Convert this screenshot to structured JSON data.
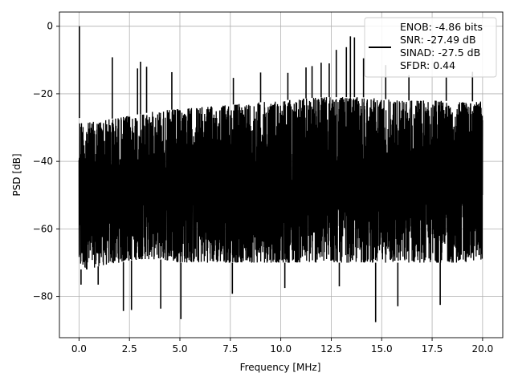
{
  "chart_data": {
    "type": "line",
    "title": "",
    "xlabel": "Frequency [MHz]",
    "ylabel": "PSD [dB]",
    "xlim": [
      -0.97,
      21.0
    ],
    "ylim": [
      -92.2,
      4.2
    ],
    "x_ticks": [
      0.0,
      2.5,
      5.0,
      7.5,
      10.0,
      12.5,
      15.0,
      17.5,
      20.0
    ],
    "x_tick_labels": [
      "0.0",
      "2.5",
      "5.0",
      "7.5",
      "10.0",
      "12.5",
      "15.0",
      "17.5",
      "20.0"
    ],
    "y_ticks": [
      0,
      -20,
      -40,
      -60,
      -80
    ],
    "y_tick_labels": [
      "0",
      "−20",
      "−40",
      "−60",
      "−80"
    ],
    "grid": true,
    "legend_placement": "top-right",
    "line_color": "#000000",
    "series": [
      {
        "legend_lines": [
          "ENOB: -4.86 bits",
          "SNR: -27.49 dB",
          "SINAD: -27.5 dB",
          "SFDR: 0.44"
        ],
        "x_range": [
          0.0,
          20.0
        ],
        "upper_envelope": [
          [
            0.0,
            -27
          ],
          [
            0.25,
            -29
          ],
          [
            0.5,
            -28.5
          ],
          [
            1.0,
            -28
          ],
          [
            1.5,
            -27.5
          ],
          [
            2.0,
            -27
          ],
          [
            2.5,
            -26.5
          ],
          [
            3.0,
            -26
          ],
          [
            3.5,
            -25.5
          ],
          [
            4.0,
            -25
          ],
          [
            5.0,
            -24.5
          ],
          [
            6.0,
            -24
          ],
          [
            7.0,
            -23.5
          ],
          [
            8.0,
            -23
          ],
          [
            9.0,
            -22.5
          ],
          [
            10.0,
            -22
          ],
          [
            11.0,
            -21.5
          ],
          [
            12.0,
            -21
          ],
          [
            13.0,
            -21
          ],
          [
            14.0,
            -21
          ],
          [
            15.0,
            -21.5
          ],
          [
            16.0,
            -22
          ],
          [
            17.0,
            -22
          ],
          [
            18.0,
            -22
          ],
          [
            19.0,
            -22.5
          ],
          [
            20.0,
            -22
          ]
        ],
        "lower_envelope": [
          [
            0.0,
            -72
          ],
          [
            0.5,
            -72
          ],
          [
            1.0,
            -71
          ],
          [
            2.0,
            -70
          ],
          [
            3.0,
            -69
          ],
          [
            4.0,
            -69
          ],
          [
            5.0,
            -70
          ],
          [
            6.0,
            -70
          ],
          [
            7.0,
            -70
          ],
          [
            8.0,
            -70
          ],
          [
            9.0,
            -70
          ],
          [
            10.0,
            -70
          ],
          [
            11.0,
            -70
          ],
          [
            12.0,
            -70
          ],
          [
            13.0,
            -70
          ],
          [
            14.0,
            -70
          ],
          [
            15.0,
            -70
          ],
          [
            16.0,
            -70
          ],
          [
            17.0,
            -70
          ],
          [
            18.0,
            -70
          ],
          [
            19.0,
            -70
          ],
          [
            20.0,
            -69
          ]
        ],
        "peaks": [
          [
            0.02,
            0.0
          ],
          [
            1.65,
            -9.2
          ],
          [
            2.9,
            -12.5
          ],
          [
            3.05,
            -10.5
          ],
          [
            3.35,
            -12.0
          ],
          [
            4.6,
            -13.6
          ],
          [
            7.65,
            -15.3
          ],
          [
            9.0,
            -13.7
          ],
          [
            10.35,
            -13.8
          ],
          [
            11.25,
            -12.2
          ],
          [
            11.55,
            -11.8
          ],
          [
            12.0,
            -10.8
          ],
          [
            12.4,
            -11.0
          ],
          [
            12.75,
            -7.0
          ],
          [
            13.25,
            -6.2
          ],
          [
            13.45,
            -3.0
          ],
          [
            13.65,
            -3.3
          ],
          [
            14.1,
            -9.5
          ],
          [
            15.2,
            -11.5
          ],
          [
            16.35,
            -14.5
          ],
          [
            18.2,
            -15.2
          ],
          [
            19.5,
            -13.5
          ]
        ],
        "troughs": [
          [
            0.1,
            -76.5
          ],
          [
            0.95,
            -76.5
          ],
          [
            2.2,
            -84.3
          ],
          [
            2.6,
            -84.0
          ],
          [
            4.05,
            -83.6
          ],
          [
            5.05,
            -86.7
          ],
          [
            14.7,
            -87.6
          ],
          [
            15.8,
            -82.9
          ],
          [
            17.9,
            -82.5
          ],
          [
            7.6,
            -79.2
          ],
          [
            10.2,
            -77.5
          ],
          [
            12.9,
            -77.0
          ]
        ]
      }
    ]
  }
}
